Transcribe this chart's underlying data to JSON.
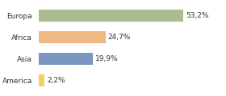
{
  "categories": [
    "Europa",
    "Africa",
    "Asia",
    "America"
  ],
  "values": [
    53.2,
    24.7,
    19.9,
    2.2
  ],
  "labels": [
    "53,2%",
    "24,7%",
    "19,9%",
    "2,2%"
  ],
  "bar_colors": [
    "#a8bc8f",
    "#f0b882",
    "#7b96c2",
    "#f0d060"
  ],
  "background_color": "#ffffff",
  "plot_bg_color": "#ffffff",
  "xlim": [
    0,
    68
  ],
  "label_fontsize": 6.5,
  "tick_fontsize": 6.5,
  "bar_height": 0.55,
  "figsize": [
    2.8,
    1.2
  ],
  "dpi": 100
}
